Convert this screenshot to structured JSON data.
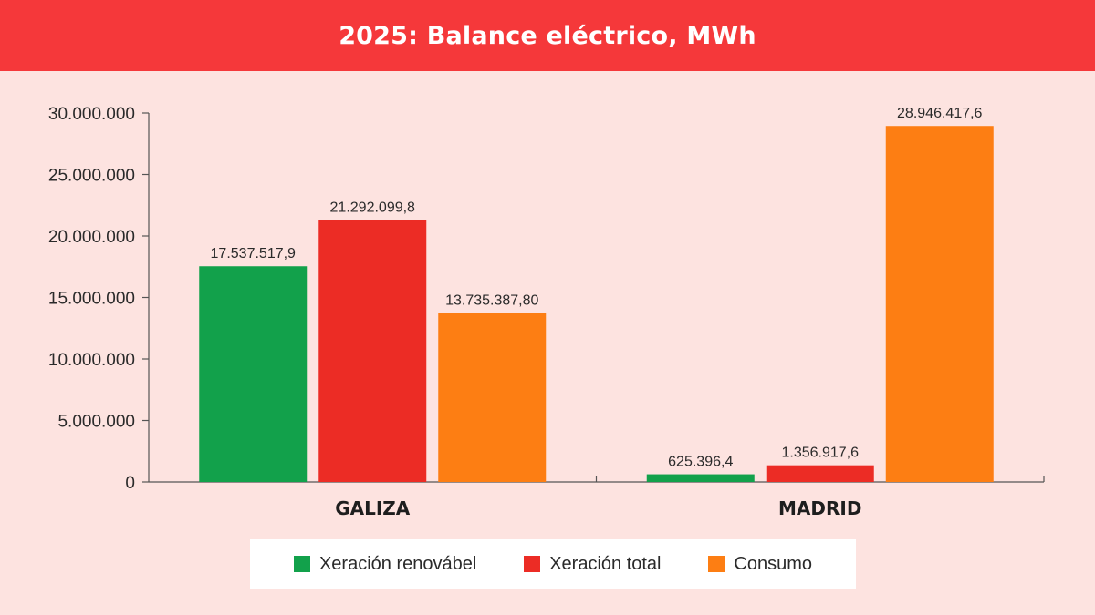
{
  "header": {
    "title": "2025: Balance eléctrico, MWh"
  },
  "colors": {
    "header_bg": "#f5383a",
    "background": "#fde3e0",
    "renovable": "#12a14b",
    "total": "#ec2c25",
    "consumo": "#fd7e13"
  },
  "chart_data": {
    "type": "bar",
    "title": "2025: Balance eléctrico, MWh",
    "xlabel": "",
    "ylabel": "",
    "categories": [
      "GALIZA",
      "MADRID"
    ],
    "ylim": [
      0,
      30000000
    ],
    "yticks": [
      0,
      5000000,
      10000000,
      15000000,
      20000000,
      25000000,
      30000000
    ],
    "ytick_labels": [
      "0",
      "5.000.000",
      "10.000.000",
      "15.000.000",
      "20.000.000",
      "25.000.000",
      "30.000.000"
    ],
    "grid": false,
    "legend_position": "bottom",
    "series": [
      {
        "name": "Xeración renovábel",
        "color": "#12a14b",
        "values": [
          17537517.9,
          625396.4
        ],
        "labels": [
          "17.537.517,9",
          "625.396,4"
        ]
      },
      {
        "name": "Xeración total",
        "color": "#ec2c25",
        "values": [
          21292099.8,
          1356917.6
        ],
        "labels": [
          "21.292.099,8",
          "1.356.917,6"
        ]
      },
      {
        "name": "Consumo",
        "color": "#fd7e13",
        "values": [
          13735387.8,
          28946417.6
        ],
        "labels": [
          "13.735.387,80",
          "28.946.417,6"
        ]
      }
    ]
  }
}
